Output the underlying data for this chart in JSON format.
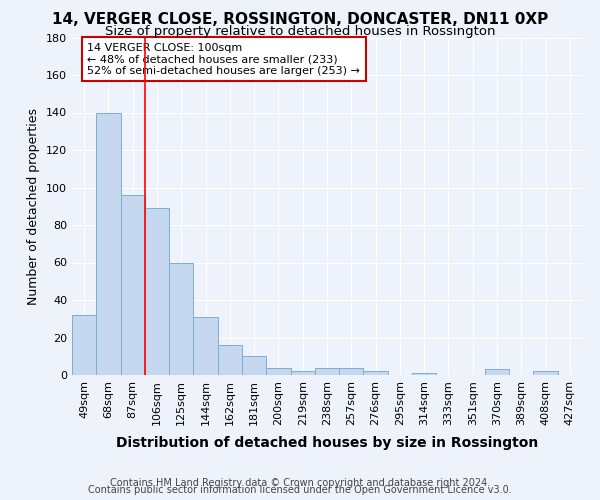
{
  "title": "14, VERGER CLOSE, ROSSINGTON, DONCASTER, DN11 0XP",
  "subtitle": "Size of property relative to detached houses in Rossington",
  "xlabel": "Distribution of detached houses by size in Rossington",
  "ylabel": "Number of detached properties",
  "categories": [
    "49sqm",
    "68sqm",
    "87sqm",
    "106sqm",
    "125sqm",
    "144sqm",
    "162sqm",
    "181sqm",
    "200sqm",
    "219sqm",
    "238sqm",
    "257sqm",
    "276sqm",
    "295sqm",
    "314sqm",
    "333sqm",
    "351sqm",
    "370sqm",
    "389sqm",
    "408sqm",
    "427sqm"
  ],
  "values": [
    32,
    140,
    96,
    89,
    60,
    31,
    16,
    10,
    4,
    2,
    4,
    4,
    2,
    0,
    1,
    0,
    0,
    3,
    0,
    2,
    0
  ],
  "bar_color": "#c5d8f0",
  "bar_edge_color": "#7bafd4",
  "red_line_x": 2.5,
  "annotation_line1": "14 VERGER CLOSE: 100sqm",
  "annotation_line2": "← 48% of detached houses are smaller (233)",
  "annotation_line3": "52% of semi-detached houses are larger (253) →",
  "annotation_box_color": "#ffffff",
  "annotation_box_edge_color": "#cc0000",
  "ylim": [
    0,
    180
  ],
  "yticks": [
    0,
    20,
    40,
    60,
    80,
    100,
    120,
    140,
    160,
    180
  ],
  "footer1": "Contains HM Land Registry data © Crown copyright and database right 2024.",
  "footer2": "Contains public sector information licensed under the Open Government Licence v3.0.",
  "bg_color": "#eef2fb",
  "grid_color": "#ffffff",
  "title_fontsize": 11,
  "subtitle_fontsize": 9.5,
  "xlabel_fontsize": 10,
  "ylabel_fontsize": 9,
  "tick_fontsize": 8,
  "annot_fontsize": 8,
  "footer_fontsize": 7
}
